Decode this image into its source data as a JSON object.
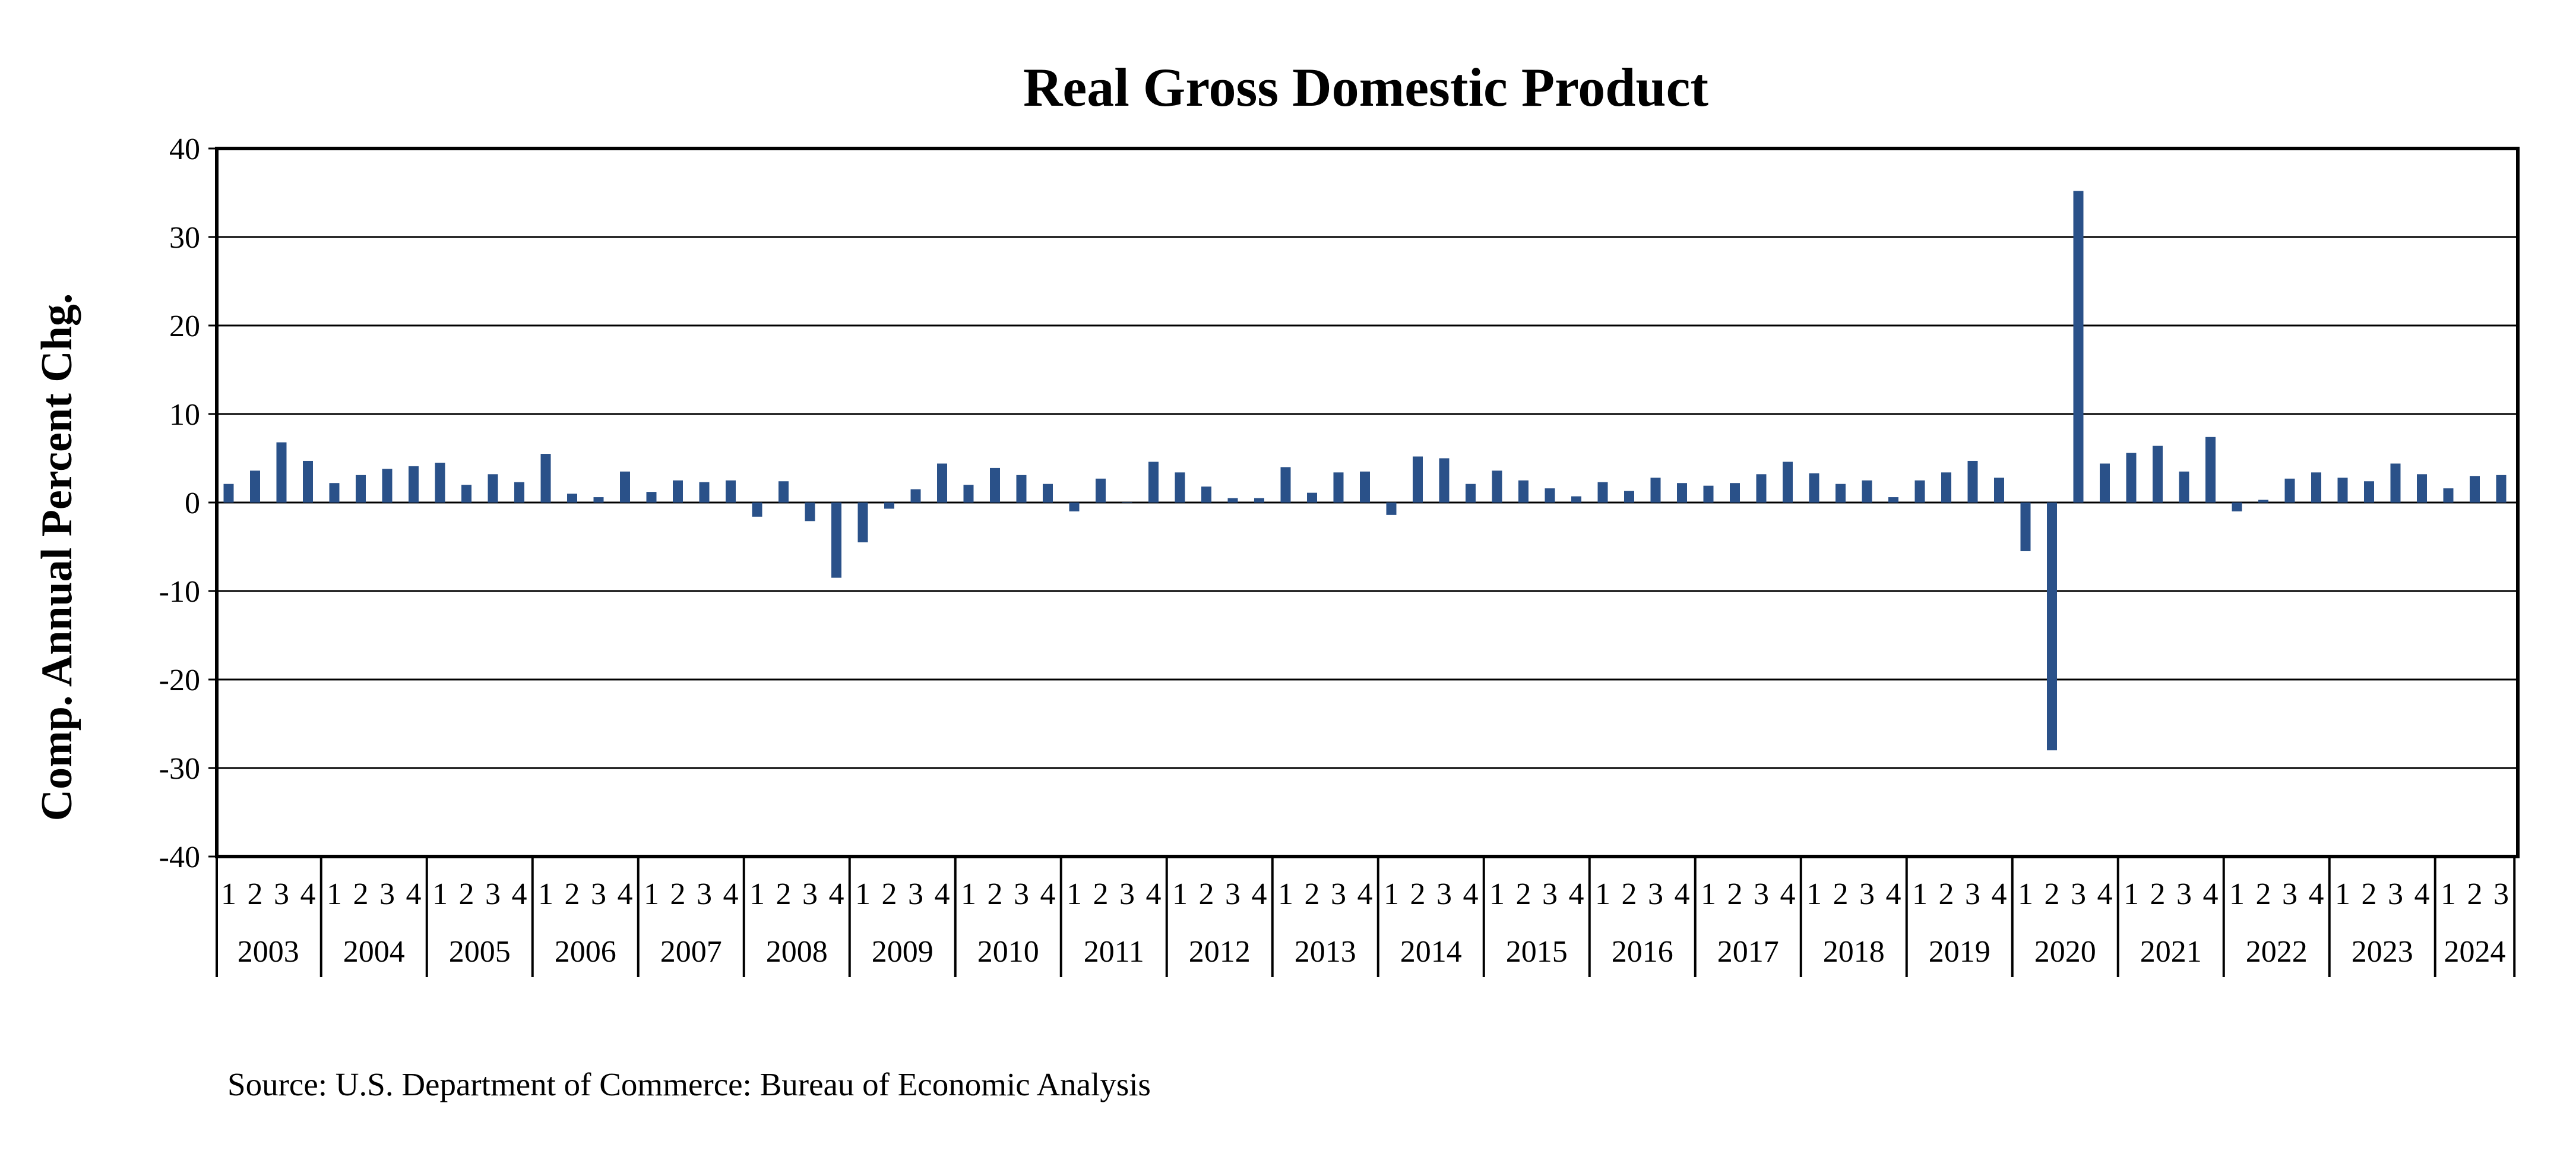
{
  "chart_data": {
    "type": "bar",
    "title": "Real Gross Domestic Product",
    "xlabel": "",
    "ylabel": "Comp. Annual Percent Chg.",
    "ylim": [
      -40,
      40
    ],
    "yticks": [
      40,
      30,
      20,
      10,
      0,
      -10,
      -20,
      -30,
      -40
    ],
    "grid": true,
    "bar_color": "#2a5189",
    "source": "Source: U.S. Department of Commerce: Bureau of Economic Analysis",
    "years": [
      {
        "year": "2003",
        "quarters": [
          "1",
          "2",
          "3",
          "4"
        ],
        "values": [
          2.1,
          3.6,
          6.8,
          4.7
        ]
      },
      {
        "year": "2004",
        "quarters": [
          "1",
          "2",
          "3",
          "4"
        ],
        "values": [
          2.2,
          3.1,
          3.8,
          4.1
        ]
      },
      {
        "year": "2005",
        "quarters": [
          "1",
          "2",
          "3",
          "4"
        ],
        "values": [
          4.5,
          2.0,
          3.2,
          2.3
        ]
      },
      {
        "year": "2006",
        "quarters": [
          "1",
          "2",
          "3",
          "4"
        ],
        "values": [
          5.5,
          1.0,
          0.6,
          3.5
        ]
      },
      {
        "year": "2007",
        "quarters": [
          "1",
          "2",
          "3",
          "4"
        ],
        "values": [
          1.2,
          2.5,
          2.3,
          2.5
        ]
      },
      {
        "year": "2008",
        "quarters": [
          "1",
          "2",
          "3",
          "4"
        ],
        "values": [
          -1.6,
          2.4,
          -2.1,
          -8.5
        ]
      },
      {
        "year": "2009",
        "quarters": [
          "1",
          "2",
          "3",
          "4"
        ],
        "values": [
          -4.5,
          -0.7,
          1.5,
          4.4
        ]
      },
      {
        "year": "2010",
        "quarters": [
          "1",
          "2",
          "3",
          "4"
        ],
        "values": [
          2.0,
          3.9,
          3.1,
          2.1
        ]
      },
      {
        "year": "2011",
        "quarters": [
          "1",
          "2",
          "3",
          "4"
        ],
        "values": [
          -1.0,
          2.7,
          0.0,
          4.6
        ]
      },
      {
        "year": "2012",
        "quarters": [
          "1",
          "2",
          "3",
          "4"
        ],
        "values": [
          3.4,
          1.8,
          0.5,
          0.5
        ]
      },
      {
        "year": "2013",
        "quarters": [
          "1",
          "2",
          "3",
          "4"
        ],
        "values": [
          4.0,
          1.1,
          3.4,
          3.5
        ]
      },
      {
        "year": "2014",
        "quarters": [
          "1",
          "2",
          "3",
          "4"
        ],
        "values": [
          -1.4,
          5.2,
          5.0,
          2.1
        ]
      },
      {
        "year": "2015",
        "quarters": [
          "1",
          "2",
          "3",
          "4"
        ],
        "values": [
          3.6,
          2.5,
          1.6,
          0.7
        ]
      },
      {
        "year": "2016",
        "quarters": [
          "1",
          "2",
          "3",
          "4"
        ],
        "values": [
          2.3,
          1.3,
          2.8,
          2.2
        ]
      },
      {
        "year": "2017",
        "quarters": [
          "1",
          "2",
          "3",
          "4"
        ],
        "values": [
          1.9,
          2.2,
          3.2,
          4.6
        ]
      },
      {
        "year": "2018",
        "quarters": [
          "1",
          "2",
          "3",
          "4"
        ],
        "values": [
          3.3,
          2.1,
          2.5,
          0.6
        ]
      },
      {
        "year": "2019",
        "quarters": [
          "1",
          "2",
          "3",
          "4"
        ],
        "values": [
          2.5,
          3.4,
          4.7,
          2.8
        ]
      },
      {
        "year": "2020",
        "quarters": [
          "1",
          "2",
          "3",
          "4"
        ],
        "values": [
          -5.5,
          -28.0,
          35.2,
          4.4
        ]
      },
      {
        "year": "2021",
        "quarters": [
          "1",
          "2",
          "3",
          "4"
        ],
        "values": [
          5.6,
          6.4,
          3.5,
          7.4
        ]
      },
      {
        "year": "2022",
        "quarters": [
          "1",
          "2",
          "3",
          "4"
        ],
        "values": [
          -1.0,
          0.3,
          2.7,
          3.4
        ]
      },
      {
        "year": "2023",
        "quarters": [
          "1",
          "2",
          "3",
          "4"
        ],
        "values": [
          2.8,
          2.4,
          4.4,
          3.2
        ]
      },
      {
        "year": "2024",
        "quarters": [
          "1",
          "2",
          "3"
        ],
        "values": [
          1.6,
          3.0,
          3.1
        ]
      }
    ]
  }
}
